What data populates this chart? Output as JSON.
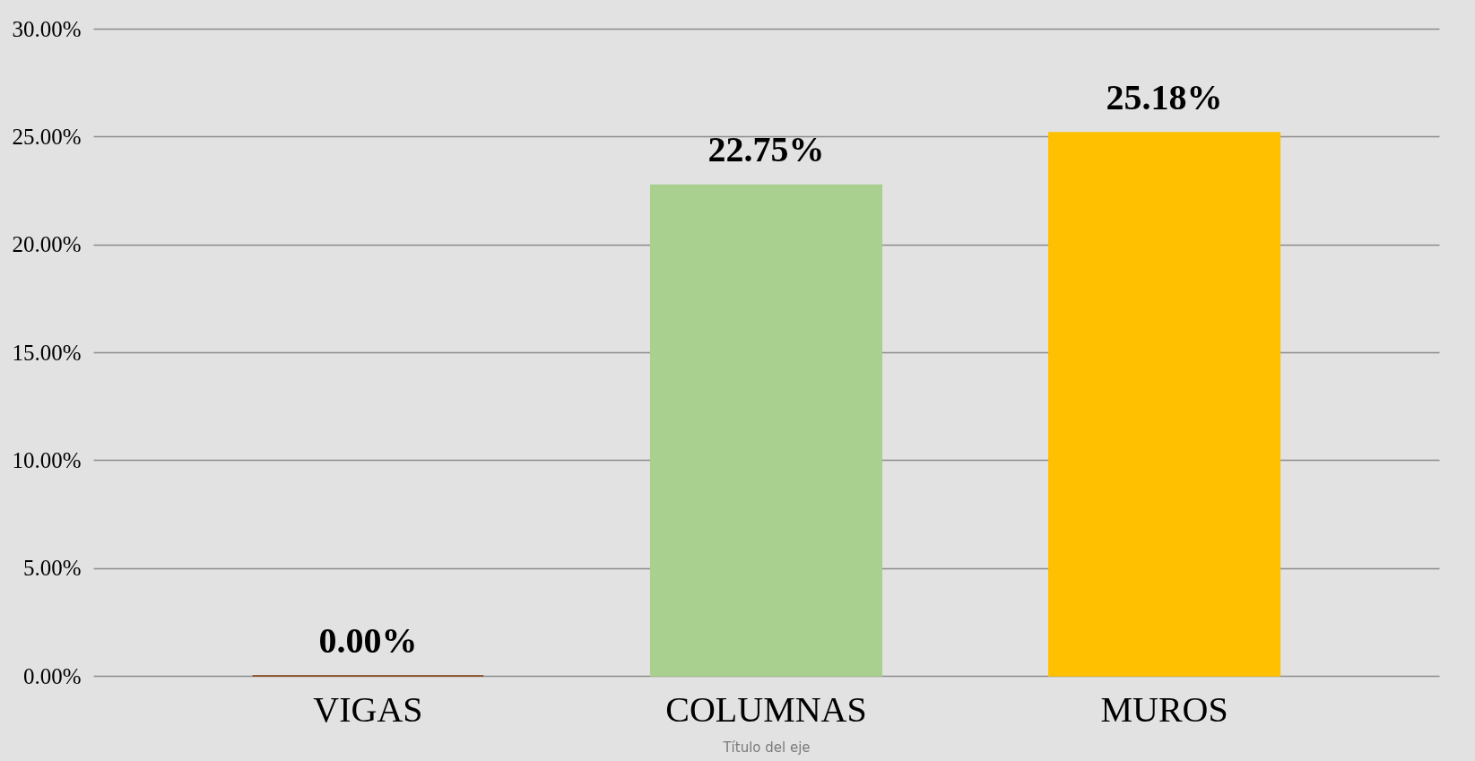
{
  "chart_data": {
    "type": "bar",
    "xlabel": "Título del eje",
    "categories": [
      "VIGAS",
      "COLUMNAS",
      "MUROS"
    ],
    "values": [
      0,
      22.75,
      25.18
    ],
    "colors": [
      "#843c0c",
      "#a9d08e",
      "#ffc000"
    ],
    "value_labels": [
      "0.00%",
      "22.75%",
      "25.18%"
    ],
    "ylim": [
      0,
      30
    ],
    "yticks": [
      {
        "value": 0,
        "label": "0.00%"
      },
      {
        "value": 5,
        "label": "5.00%"
      },
      {
        "value": 10,
        "label": "10.00%"
      },
      {
        "value": 15,
        "label": "15.00%"
      },
      {
        "value": 20,
        "label": "20.00%"
      },
      {
        "value": 25,
        "label": "25.00%"
      },
      {
        "value": 30,
        "label": "30.00%"
      }
    ],
    "grid": "y"
  }
}
